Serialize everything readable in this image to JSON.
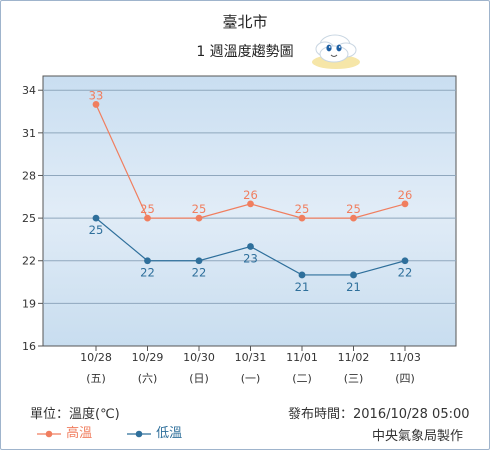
{
  "title": "臺北市",
  "subtitle": "1 週溫度趨勢圖",
  "mascot_icon": "weather-mascot-icon",
  "unit_label": "單位：溫度(℃)",
  "issued": "發布時間：2016/10/28 05:00",
  "producer": "中央氣象局製作",
  "chart_data": {
    "type": "line",
    "categories": [
      "10/28",
      "10/29",
      "10/30",
      "10/31",
      "11/01",
      "11/02",
      "11/03"
    ],
    "weekdays": [
      "(五)",
      "(六)",
      "(日)",
      "(一)",
      "(二)",
      "(三)",
      "(四)"
    ],
    "ylim": [
      16,
      35
    ],
    "yticks": [
      16,
      19,
      22,
      25,
      28,
      31,
      34
    ],
    "grid": true,
    "legend_position": "bottom-left",
    "series": [
      {
        "name": "高溫",
        "color": "#f07e5f",
        "values": [
          33,
          25,
          25,
          26,
          25,
          25,
          26
        ]
      },
      {
        "name": "低溫",
        "color": "#2e6f9b",
        "values": [
          25,
          22,
          22,
          23,
          21,
          21,
          22
        ]
      }
    ]
  }
}
